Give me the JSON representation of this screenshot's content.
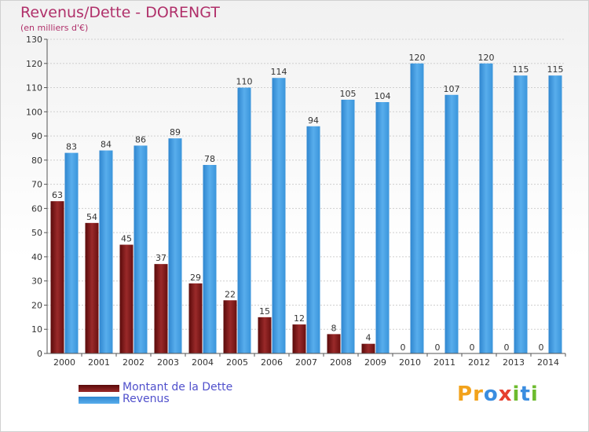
{
  "header": {
    "title": "Revenus/Dette - DORENGT",
    "subtitle": "(en milliers d'€)"
  },
  "legend": {
    "items": [
      {
        "label": "Montant de la Dette",
        "color": "#8b1a1a"
      },
      {
        "label": "Revenus",
        "color": "#3a95db"
      }
    ]
  },
  "logo": {
    "text": "Proxiti",
    "colors": [
      "#f2a21b",
      "#f2a21b",
      "#3a8de0",
      "#e63f2e",
      "#6dbb2e",
      "#3a8de0",
      "#6dbb2e"
    ]
  },
  "chart_data": {
    "type": "bar",
    "title": "Revenus/Dette - DORENGT",
    "subtitle": "(en milliers d'€)",
    "categories": [
      "2000",
      "2001",
      "2002",
      "2003",
      "2004",
      "2005",
      "2006",
      "2007",
      "2008",
      "2009",
      "2010",
      "2011",
      "2012",
      "2013",
      "2014"
    ],
    "series": [
      {
        "name": "Montant de la Dette",
        "color": "#8b1a1a",
        "values": [
          63,
          54,
          45,
          37,
          29,
          22,
          15,
          12,
          8,
          4,
          0,
          0,
          0,
          0,
          0
        ]
      },
      {
        "name": "Revenus",
        "color": "#3a95db",
        "values": [
          83,
          84,
          86,
          89,
          78,
          110,
          114,
          94,
          105,
          104,
          120,
          107,
          120,
          115,
          115
        ]
      }
    ],
    "ylim": [
      0,
      130
    ],
    "yticks": [
      0,
      10,
      20,
      30,
      40,
      50,
      60,
      70,
      80,
      90,
      100,
      110,
      120,
      130
    ],
    "grid": true,
    "legend_position": "bottom-left"
  }
}
